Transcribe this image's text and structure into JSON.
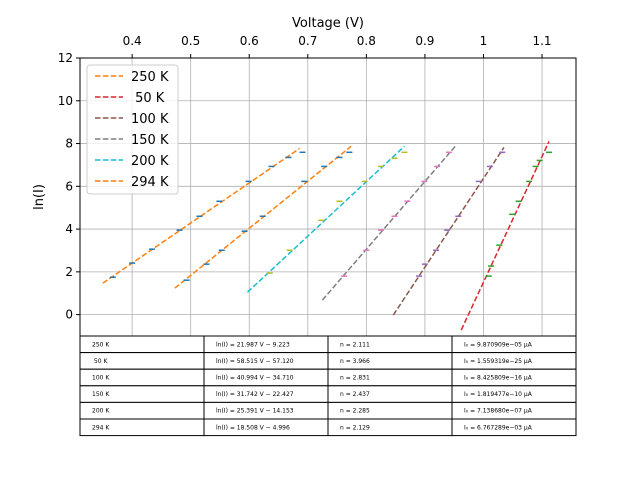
{
  "chart_data": {
    "type": "line",
    "x_label": "Voltage (V)",
    "y_label": "ln(I)",
    "xlim": [
      0.311,
      1.158
    ],
    "ylim": [
      -1,
      12
    ],
    "xticks": [
      0.4,
      0.5,
      0.6,
      0.7,
      0.8,
      0.9,
      1.0,
      1.1
    ],
    "yticks": [
      0,
      2,
      4,
      6,
      8,
      10,
      12
    ],
    "grid": true,
    "legend": "upper left",
    "series": [
      {
        "name": "250 K",
        "color": "#ff7f0e",
        "x": [
          0.35,
          0.686
        ],
        "y": [
          1.47,
          7.77
        ],
        "marker_color": "#1f77b4",
        "marker_x": [
          0.367,
          0.4,
          0.434,
          0.481,
          0.515,
          0.549,
          0.599,
          0.638,
          0.667,
          0.691
        ],
        "marker_y": [
          1.75,
          2.41,
          3.06,
          3.95,
          4.6,
          5.3,
          6.23,
          6.93,
          7.35,
          7.59
        ]
      },
      {
        "name": " 50 K",
        "color": "#d62728",
        "x": [
          0.962,
          1.112
        ],
        "y": [
          -0.72,
          8.1
        ],
        "marker_color": "#2ca02c",
        "marker_x": [
          1.009,
          1.013,
          1.027,
          1.049,
          1.06,
          1.078,
          1.089,
          1.096,
          1.112
        ],
        "marker_y": [
          1.8,
          2.27,
          3.25,
          4.69,
          5.3,
          6.23,
          6.93,
          7.21,
          7.59
        ]
      },
      {
        "name": "100 K",
        "color": "#8c564b",
        "x": [
          0.846,
          1.035
        ],
        "y": [
          -0.02,
          7.82
        ],
        "marker_color": "#9467bd",
        "marker_x": [
          0.89,
          0.9,
          0.919,
          0.938,
          0.957,
          0.992,
          1.011,
          1.032
        ],
        "marker_y": [
          1.8,
          2.36,
          3.01,
          3.95,
          4.6,
          6.23,
          6.93,
          7.59
        ]
      },
      {
        "name": "150 K",
        "color": "#7f7f7f",
        "x": [
          0.725,
          0.953
        ],
        "y": [
          0.68,
          7.91
        ],
        "marker_color": "#e377c2",
        "marker_x": [
          0.762,
          0.8,
          0.825,
          0.848,
          0.87,
          0.899,
          0.921,
          0.941
        ],
        "marker_y": [
          1.8,
          3.01,
          3.95,
          4.6,
          5.3,
          6.23,
          6.93,
          7.59
        ]
      },
      {
        "name": "200 K",
        "color": "#17becf",
        "x": [
          0.597,
          0.865
        ],
        "y": [
          1.05,
          7.87
        ],
        "marker_color": "#bcbd22",
        "marker_x": [
          0.635,
          0.669,
          0.723,
          0.754,
          0.797,
          0.825,
          0.848,
          0.865
        ],
        "marker_y": [
          1.94,
          3.01,
          4.41,
          5.3,
          6.23,
          6.93,
          7.31,
          7.59
        ]
      },
      {
        "name": "294 K",
        "color": "#ff7f0e",
        "x": [
          0.473,
          0.774
        ],
        "y": [
          1.24,
          7.87
        ],
        "marker_color": "#1f77b4",
        "marker_x": [
          0.493,
          0.527,
          0.553,
          0.592,
          0.623,
          0.694,
          0.728,
          0.754,
          0.771
        ],
        "marker_y": [
          1.61,
          2.36,
          3.01,
          3.9,
          4.6,
          6.23,
          6.93,
          7.35,
          7.59
        ]
      }
    ]
  },
  "table": {
    "rows": [
      [
        "250 K",
        "ln(I) = 21.987 V − 9.223",
        "n = 2.111",
        "I₀ = 9.870909e−05 µA"
      ],
      [
        " 50 K",
        "ln(I) = 58.515 V − 57.120",
        "n = 3.966",
        "I₀ = 1.559319e−25 µA"
      ],
      [
        "100 K",
        "ln(I) = 40.994 V − 34.710",
        "n = 2.831",
        "I₀ = 8.425809e−16 µA"
      ],
      [
        "150 K",
        "ln(I) = 31.742 V − 22.427",
        "n = 2.437",
        "I₀ = 1.819477e−10 µA"
      ],
      [
        "200 K",
        "ln(I) = 25.391 V − 14.153",
        "n = 2.285",
        "I₀ = 7.138680e−07 µA"
      ],
      [
        "294 K",
        "ln(I) = 18.508 V − 4.996",
        "n = 2.129",
        "I₀ = 6.767289e−03 µA"
      ]
    ]
  }
}
